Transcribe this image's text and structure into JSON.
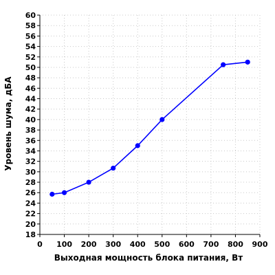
{
  "chart_data": {
    "type": "line",
    "title": "",
    "xlabel": "Выходная мощность блока питания, Вт",
    "ylabel": "Уровень шума, дБА",
    "xlim": [
      0,
      900
    ],
    "ylim": [
      18,
      60
    ],
    "xticks": [
      0,
      100,
      200,
      300,
      400,
      500,
      600,
      700,
      800,
      900
    ],
    "yticks": [
      18,
      20,
      22,
      24,
      26,
      28,
      30,
      32,
      34,
      36,
      38,
      40,
      42,
      44,
      46,
      48,
      50,
      52,
      54,
      56,
      58,
      60
    ],
    "grid": true,
    "legend": "none",
    "series": [
      {
        "x": [
          50,
          100,
          200,
          300,
          400,
          500,
          750,
          850
        ],
        "y": [
          25.7,
          26.0,
          28.0,
          30.7,
          35.0,
          40.0,
          50.5,
          51.0
        ]
      }
    ],
    "colors": {
      "series": "#0000ff",
      "grid": "#c8c8c8",
      "axis": "#000000"
    }
  }
}
